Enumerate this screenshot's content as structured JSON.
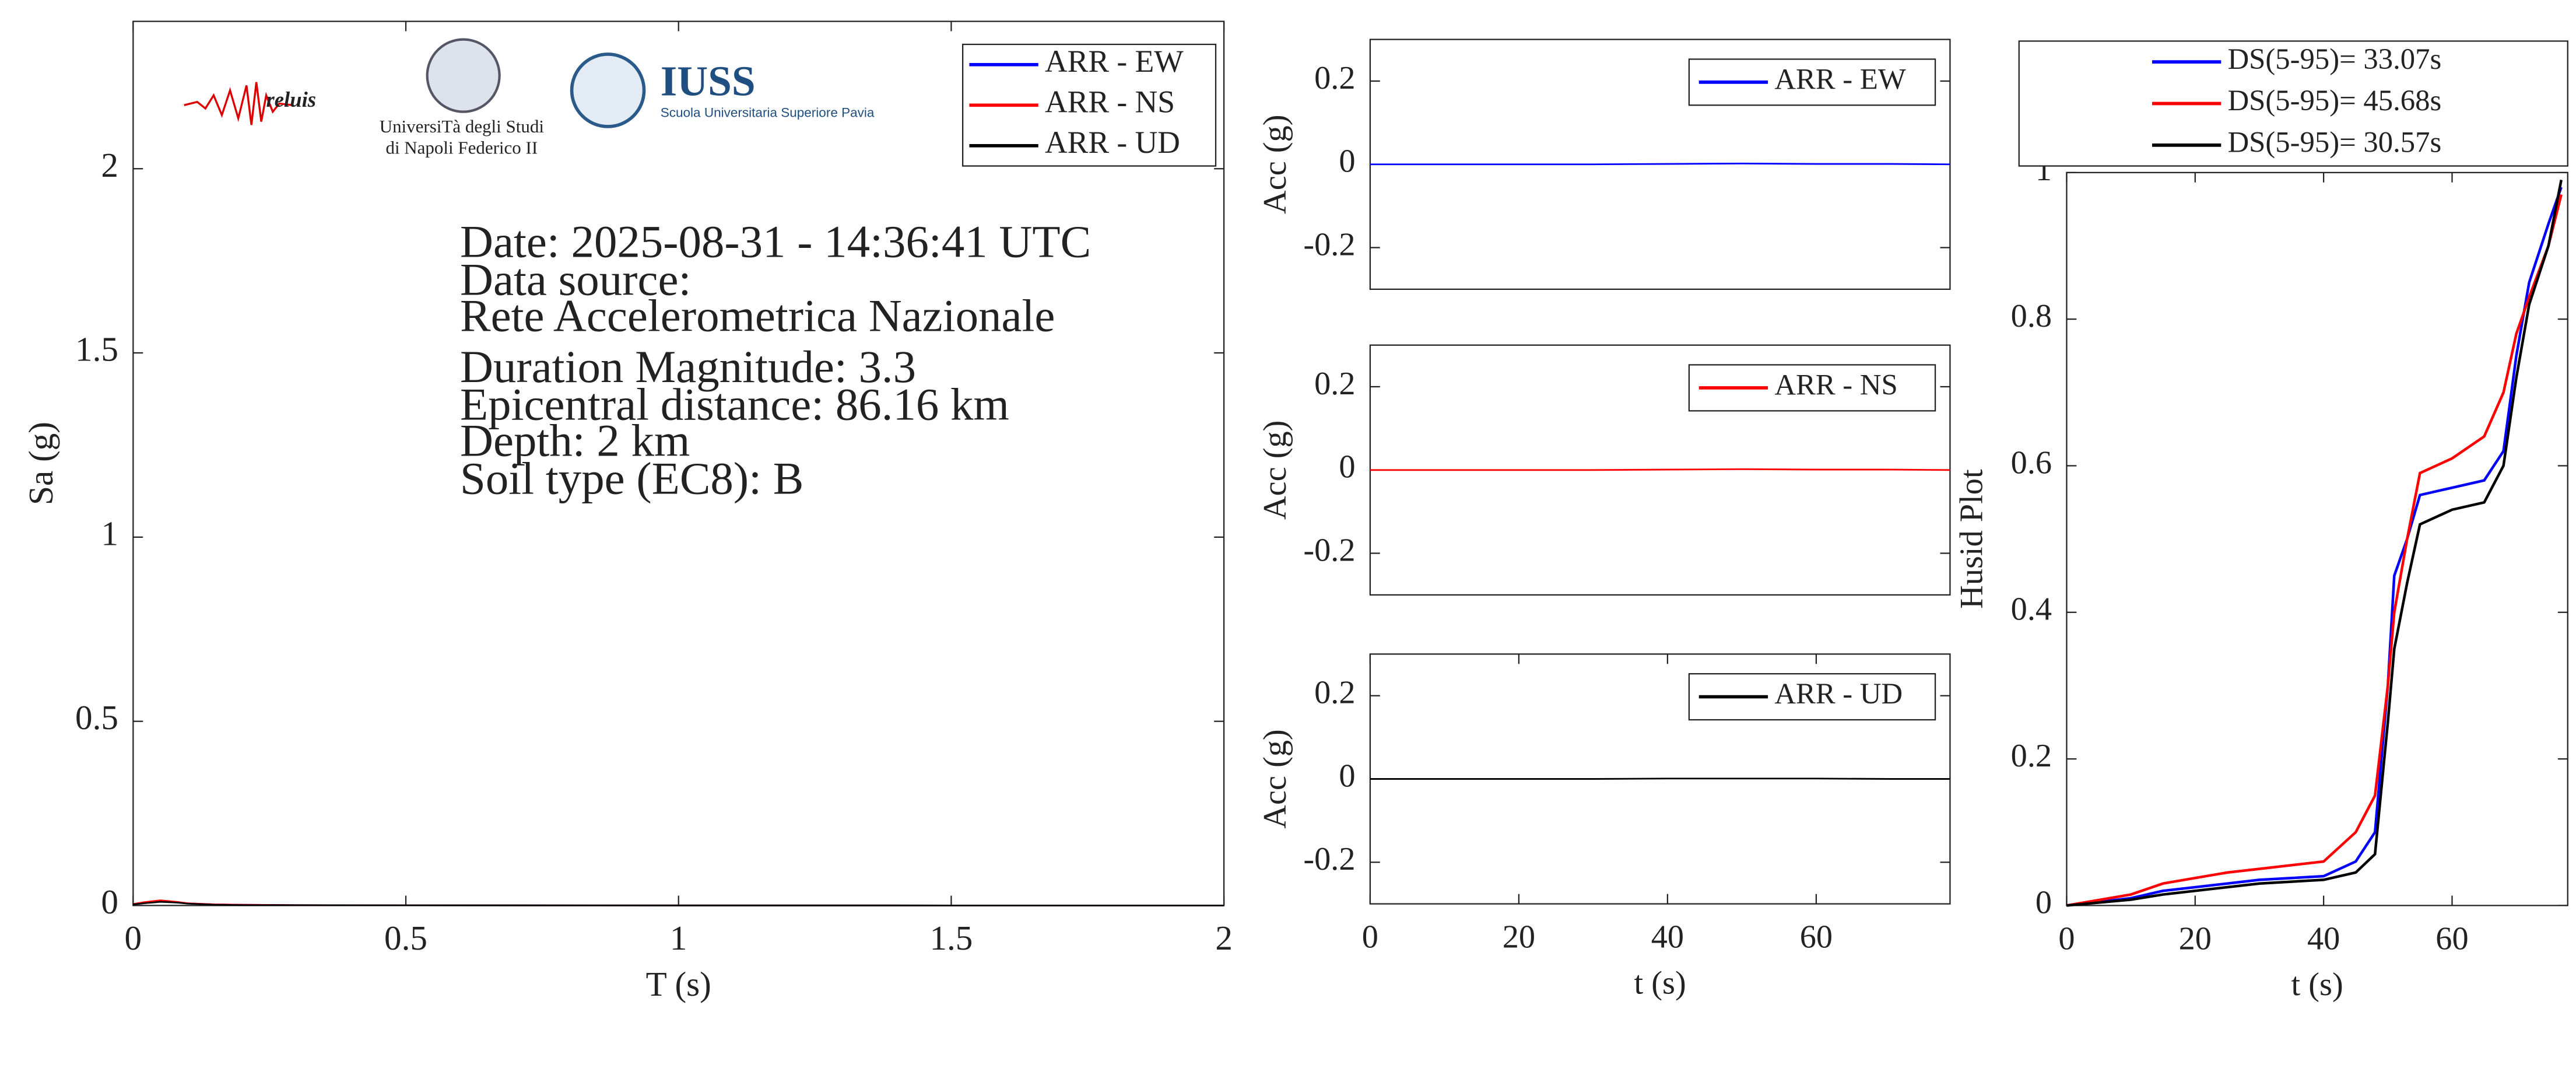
{
  "chart_data": [
    {
      "type": "line",
      "xlabel": "T (s)",
      "ylabel": "Sa (g)",
      "xlim": [
        0,
        2
      ],
      "ylim": [
        0,
        2.4
      ],
      "xticks": [
        0,
        0.5,
        1,
        1.5,
        2
      ],
      "yticks": [
        0,
        0.5,
        1,
        1.5,
        2
      ],
      "legend": "upper right",
      "x": [
        0,
        0.02,
        0.05,
        0.08,
        0.1,
        0.15,
        0.2,
        0.3,
        0.5,
        1,
        1.5,
        2
      ],
      "series": [
        {
          "name": "ARR - EW",
          "color": "#0000ff",
          "values": [
            0.004,
            0.008,
            0.012,
            0.009,
            0.006,
            0.003,
            0.002,
            0.001,
            0.0005,
            0.0002,
            0.0001,
            0.0001
          ]
        },
        {
          "name": "ARR - NS",
          "color": "#ff0000",
          "values": [
            0.004,
            0.009,
            0.014,
            0.01,
            0.006,
            0.003,
            0.002,
            0.001,
            0.0005,
            0.0002,
            0.0001,
            0.0001
          ]
        },
        {
          "name": "ARR - UD",
          "color": "#000000",
          "values": [
            0.003,
            0.006,
            0.01,
            0.008,
            0.005,
            0.002,
            0.001,
            0.0008,
            0.0004,
            0.0002,
            0.0001,
            0.0001
          ]
        }
      ],
      "annotations": [
        "Date: 2025-08-31 - 14:36:41 UTC",
        "Data source:",
        "Rete Accelerometrica Nazionale",
        "Duration Magnitude: 3.3",
        "Epicentral distance: 86.16 km",
        "Depth: 2 km",
        "Soil type (EC8): B"
      ]
    },
    {
      "type": "line",
      "ylabel": "Acc (g)",
      "xlim": [
        0,
        78
      ],
      "ylim": [
        -0.3,
        0.3
      ],
      "yticks": [
        -0.2,
        0,
        0.2
      ],
      "legend": "upper right",
      "x": [
        0,
        10,
        20,
        30,
        40,
        50,
        60,
        70,
        78
      ],
      "series": [
        {
          "name": "ARR - EW",
          "color": "#0000ff",
          "values": [
            0,
            0,
            0,
            0,
            0.001,
            0.002,
            0.001,
            0.001,
            0
          ]
        }
      ]
    },
    {
      "type": "line",
      "ylabel": "Acc (g)",
      "xlim": [
        0,
        78
      ],
      "ylim": [
        -0.3,
        0.3
      ],
      "yticks": [
        -0.2,
        0,
        0.2
      ],
      "legend": "upper right",
      "x": [
        0,
        10,
        20,
        30,
        40,
        50,
        60,
        70,
        78
      ],
      "series": [
        {
          "name": "ARR - NS",
          "color": "#ff0000",
          "values": [
            0,
            0,
            0,
            0,
            0.001,
            0.002,
            0.001,
            0.001,
            0
          ]
        }
      ]
    },
    {
      "type": "line",
      "xlabel": "t (s)",
      "ylabel": "Acc (g)",
      "xlim": [
        0,
        78
      ],
      "ylim": [
        -0.3,
        0.3
      ],
      "xticks": [
        0,
        20,
        40,
        60
      ],
      "yticks": [
        -0.2,
        0,
        0.2
      ],
      "legend": "upper right",
      "x": [
        0,
        10,
        20,
        30,
        40,
        50,
        60,
        70,
        78
      ],
      "series": [
        {
          "name": "ARR - UD",
          "color": "#000000",
          "values": [
            0,
            0,
            0,
            0,
            0.001,
            0.001,
            0.001,
            0,
            0
          ]
        }
      ]
    },
    {
      "type": "line",
      "xlabel": "t (s)",
      "ylabel": "Husid Plot",
      "xlim": [
        0,
        78
      ],
      "ylim": [
        0,
        1
      ],
      "xticks": [
        0,
        20,
        40,
        60
      ],
      "yticks": [
        0,
        0.2,
        0.4,
        0.6,
        0.8,
        1
      ],
      "legend": "north outside",
      "x": [
        0,
        10,
        15,
        25,
        30,
        40,
        45,
        48,
        50,
        51,
        53,
        55,
        60,
        65,
        68,
        70,
        72,
        75,
        77
      ],
      "series": [
        {
          "name": "DS(5-95)= 33.07s",
          "color": "#0000ff",
          "values": [
            0,
            0.01,
            0.02,
            0.03,
            0.035,
            0.04,
            0.06,
            0.1,
            0.3,
            0.45,
            0.5,
            0.56,
            0.57,
            0.58,
            0.62,
            0.75,
            0.85,
            0.93,
            0.98
          ]
        },
        {
          "name": "DS(5-95)= 45.68s",
          "color": "#ff0000",
          "values": [
            0,
            0.015,
            0.03,
            0.045,
            0.05,
            0.06,
            0.1,
            0.15,
            0.3,
            0.4,
            0.5,
            0.59,
            0.61,
            0.64,
            0.7,
            0.78,
            0.83,
            0.9,
            0.97
          ]
        },
        {
          "name": "DS(5-95)= 30.57s",
          "color": "#000000",
          "values": [
            0,
            0.008,
            0.015,
            0.025,
            0.03,
            0.035,
            0.045,
            0.07,
            0.25,
            0.35,
            0.44,
            0.52,
            0.54,
            0.55,
            0.6,
            0.72,
            0.82,
            0.9,
            0.99
          ]
        }
      ]
    }
  ],
  "logos": {
    "reluis": "reluis",
    "unina_1": "UniversiTà degli Studi",
    "unina_2": "di Napoli Federico II",
    "iuss": "IUSS",
    "iuss_sub": "Scuola Universitaria Superiore Pavia"
  }
}
